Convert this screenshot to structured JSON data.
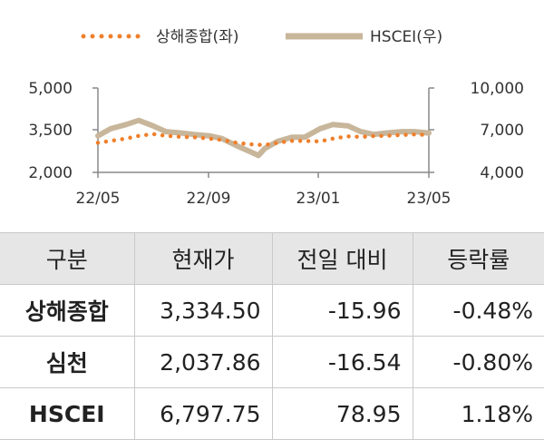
{
  "chart_data": {
    "type": "line",
    "legend": [
      "상해종합(좌)",
      "HSCEI(우)"
    ],
    "legend_position": "top-center",
    "x_ticks": [
      "22/05",
      "22/09",
      "23/01",
      "23/05"
    ],
    "y_left": {
      "ticks": [
        "5,000",
        "3,500",
        "2,000"
      ],
      "range": [
        2000,
        5000
      ]
    },
    "y_right": {
      "ticks": [
        "10,000",
        "7,000",
        "4,000"
      ],
      "range": [
        4000,
        10000
      ]
    },
    "x_range": [
      "2022-05-01",
      "2023-05-01"
    ],
    "series": [
      {
        "name": "상해종합(좌)",
        "axis": "left",
        "style": "dotted",
        "color": "#f07f2a",
        "x": [
          "2022-05-01",
          "2022-05-15",
          "2022-06-01",
          "2022-06-15",
          "2022-07-01",
          "2022-07-15",
          "2022-08-01",
          "2022-08-15",
          "2022-09-01",
          "2022-09-15",
          "2022-10-01",
          "2022-10-15",
          "2022-11-01",
          "2022-11-15",
          "2022-12-01",
          "2022-12-15",
          "2023-01-01",
          "2023-01-15",
          "2023-02-01",
          "2023-02-15",
          "2023-03-01",
          "2023-03-15",
          "2023-04-01",
          "2023-04-15",
          "2023-05-01"
        ],
        "values": [
          3050,
          3120,
          3200,
          3300,
          3360,
          3300,
          3260,
          3250,
          3200,
          3150,
          3050,
          3000,
          2970,
          3050,
          3120,
          3120,
          3100,
          3200,
          3280,
          3260,
          3290,
          3300,
          3330,
          3350,
          3330
        ]
      },
      {
        "name": "HSCEI(우)",
        "axis": "right",
        "style": "solid",
        "color": "#c8b69b",
        "x": [
          "2022-05-01",
          "2022-05-15",
          "2022-06-01",
          "2022-06-15",
          "2022-07-01",
          "2022-07-15",
          "2022-08-01",
          "2022-08-15",
          "2022-09-01",
          "2022-09-15",
          "2022-10-01",
          "2022-10-15",
          "2022-10-25",
          "2022-11-01",
          "2022-11-15",
          "2022-12-01",
          "2022-12-15",
          "2023-01-01",
          "2023-01-15",
          "2023-02-01",
          "2023-02-15",
          "2023-03-01",
          "2023-03-15",
          "2023-04-01",
          "2023-04-15",
          "2023-05-01"
        ],
        "values": [
          6600,
          7100,
          7400,
          7700,
          7300,
          6900,
          6800,
          6700,
          6600,
          6400,
          5900,
          5500,
          5200,
          5700,
          6200,
          6500,
          6500,
          7100,
          7400,
          7300,
          6900,
          6700,
          6800,
          6900,
          6900,
          6800
        ]
      }
    ]
  },
  "table": {
    "headers": [
      "구분",
      "현재가",
      "전일 대비",
      "등락률"
    ],
    "rows": [
      [
        "상해종합",
        "3,334.50",
        "-15.96",
        "-0.48%"
      ],
      [
        "심천",
        "2,037.86",
        "-16.54",
        "-0.80%"
      ],
      [
        "HSCEI",
        "6,797.75",
        "78.95",
        "1.18%"
      ]
    ]
  }
}
